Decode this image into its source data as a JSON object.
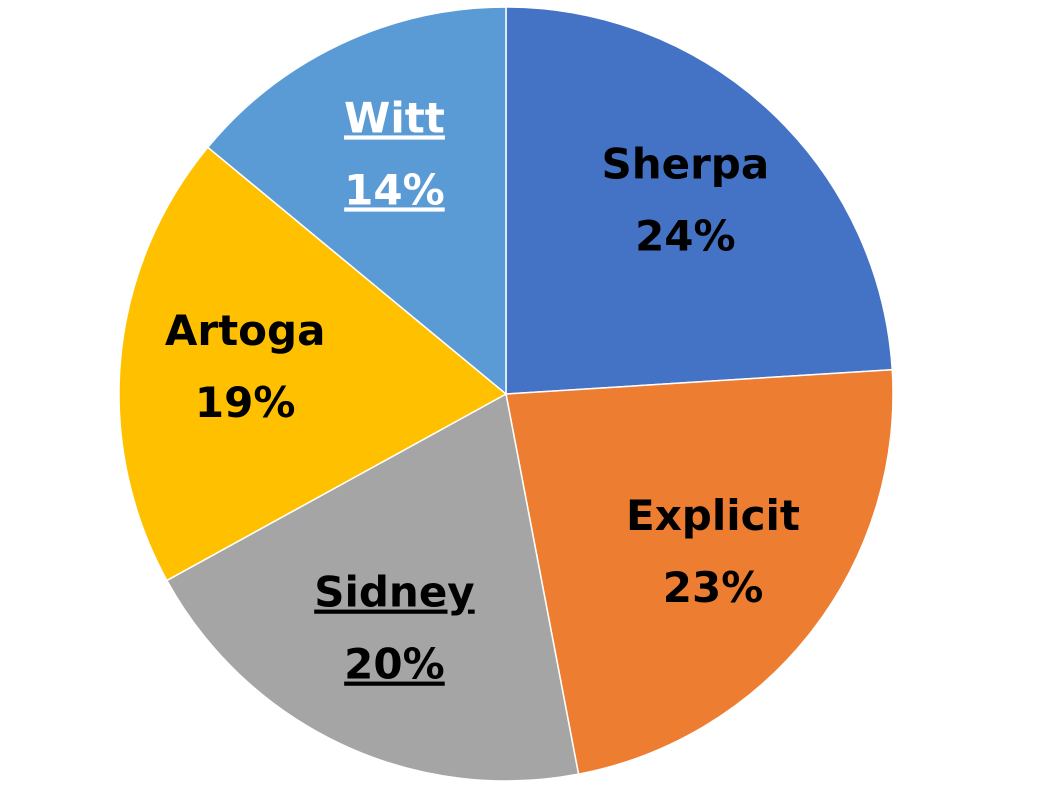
{
  "chart_data": {
    "type": "pie",
    "categories": [
      "Sherpa",
      "Explicit",
      "Sidney",
      "Artoga",
      "Witt"
    ],
    "values": [
      24,
      23,
      20,
      19,
      14
    ],
    "value_labels": [
      "24%",
      "23%",
      "20%",
      "19%",
      "14%"
    ],
    "colors": [
      "#4472c4",
      "#ed7d31",
      "#a5a5a5",
      "#ffc000",
      "#5b9bd5"
    ],
    "label_colors": [
      "#000000",
      "#000000",
      "#000000",
      "#000000",
      "#ffffff"
    ],
    "label_underline": [
      false,
      false,
      true,
      false,
      true
    ]
  }
}
